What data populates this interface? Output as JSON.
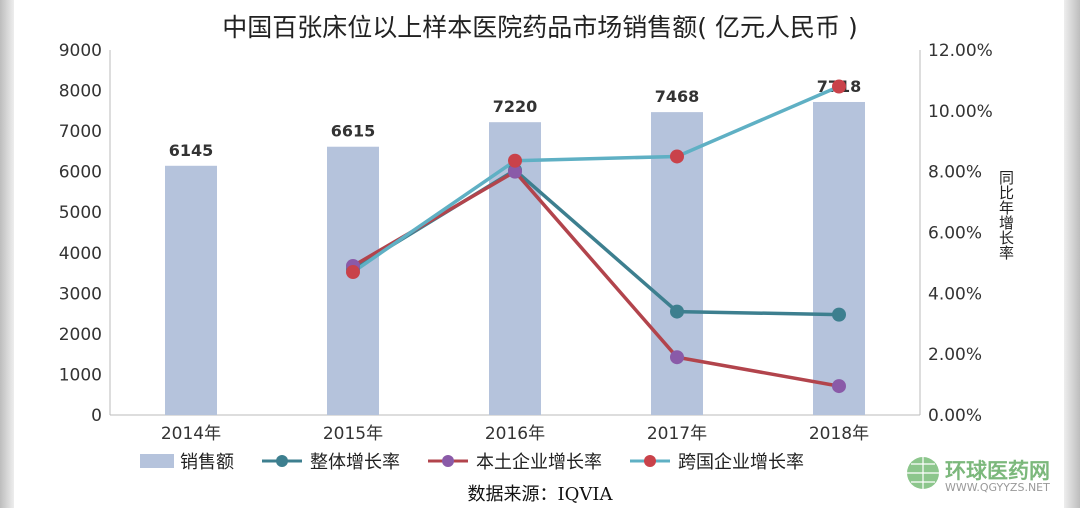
{
  "chart_data": {
    "type": "bar+line",
    "title": "中国百张床位以上样本医院药品市场销售额( 亿元人民币 )",
    "categories": [
      "2014年",
      "2015年",
      "2016年",
      "2017年",
      "2018年"
    ],
    "bars": {
      "name": "销售额",
      "values": [
        6145,
        6615,
        7220,
        7468,
        7718
      ],
      "data_labels": [
        "6145",
        "6615",
        "7220",
        "7468",
        "7718"
      ],
      "color": "#b5c3dc"
    },
    "series": [
      {
        "name": "整体增长率",
        "values": [
          null,
          4.8,
          8.05,
          3.4,
          3.3
        ],
        "line_color": "#3d7f8f",
        "marker_color": "#3d7f8f"
      },
      {
        "name": "本土企业增长率",
        "values": [
          null,
          4.9,
          8.0,
          1.9,
          0.95
        ],
        "line_color": "#b2444c",
        "marker_color": "#8a5aa8"
      },
      {
        "name": "跨国企业增长率",
        "values": [
          null,
          4.7,
          8.36,
          8.5,
          10.8
        ],
        "line_color": "#5fb0c4",
        "marker_color": "#c9424a"
      }
    ],
    "y_left": {
      "lim": [
        0,
        9000
      ],
      "ticks": [
        "0",
        "1000",
        "2000",
        "3000",
        "4000",
        "5000",
        "6000",
        "7000",
        "8000",
        "9000"
      ]
    },
    "y_right": {
      "label": "同比年增长率",
      "lim": [
        0,
        12
      ],
      "ticks": [
        "0.00%",
        "2.00%",
        "4.00%",
        "6.00%",
        "8.00%",
        "10.00%",
        "12.00%"
      ]
    },
    "grid": false,
    "legend": "bottom",
    "source": "数据来源：IQVIA"
  },
  "watermark": {
    "name": "环球医药网",
    "url_text": "WWW.QGYYZS.NET"
  }
}
